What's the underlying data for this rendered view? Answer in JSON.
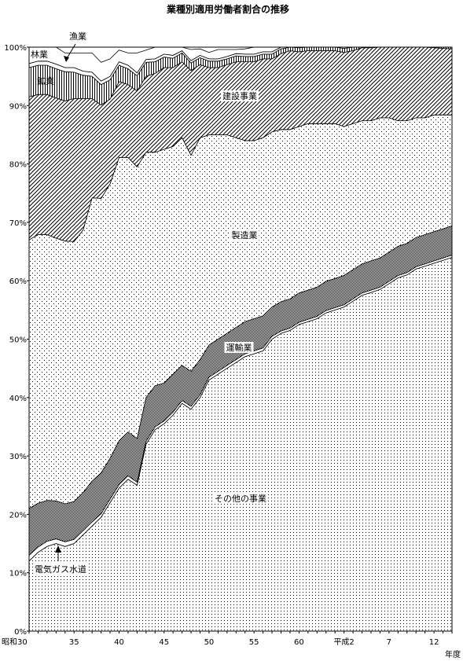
{
  "chart_data": {
    "type": "area",
    "stacked": true,
    "percent": true,
    "title": "業種別適用労働者割合の推移",
    "xlabel": "年度",
    "ylabel": "",
    "ylim": [
      0,
      100
    ],
    "x_tick_labels": [
      "昭和30",
      "35",
      "40",
      "45",
      "50",
      "55",
      "60",
      "平成2",
      "7",
      "12"
    ],
    "y_tick_labels": [
      "0%",
      "10%",
      "20%",
      "30%",
      "40%",
      "50%",
      "60%",
      "70%",
      "80%",
      "90%",
      "100%"
    ],
    "categories": [
      "昭和30",
      "31",
      "32",
      "33",
      "34",
      "35",
      "36",
      "37",
      "38",
      "39",
      "40",
      "41",
      "42",
      "43",
      "44",
      "45",
      "46",
      "47",
      "48",
      "49",
      "50",
      "51",
      "52",
      "53",
      "54",
      "55",
      "56",
      "57",
      "58",
      "59",
      "60",
      "61",
      "62",
      "63",
      "平成元",
      "平成2",
      "3",
      "4",
      "5",
      "6",
      "7",
      "8",
      "9",
      "10",
      "11",
      "12",
      "13",
      "14"
    ],
    "series": [
      {
        "name": "その他の事業",
        "values": [
          12,
          13.5,
          14.5,
          15,
          14.5,
          15,
          16.5,
          18,
          19.5,
          22,
          24.5,
          26,
          25,
          32,
          34.5,
          35.5,
          37,
          39,
          38,
          40,
          43,
          44,
          45,
          46,
          47,
          47.5,
          48,
          50,
          51,
          51.5,
          52.5,
          53,
          53.5,
          54.5,
          55,
          55.5,
          56.5,
          57.5,
          58,
          58.5,
          59.5,
          60.5,
          61,
          62,
          62.5,
          63,
          63.5,
          64
        ]
      },
      {
        "name": "電気ガス水道",
        "values": [
          1,
          0.9,
          0.9,
          0.8,
          0.8,
          0.7,
          0.7,
          0.7,
          0.6,
          0.6,
          0.6,
          0.6,
          0.5,
          0.5,
          0.5,
          0.5,
          0.5,
          0.5,
          0.5,
          0.5,
          0.5,
          0.5,
          0.5,
          0.5,
          0.5,
          0.5,
          0.5,
          0.5,
          0.4,
          0.4,
          0.4,
          0.4,
          0.4,
          0.4,
          0.4,
          0.4,
          0.4,
          0.4,
          0.4,
          0.4,
          0.4,
          0.4,
          0.4,
          0.4,
          0.4,
          0.4,
          0.4,
          0.4
        ]
      },
      {
        "name": "運輸業",
        "values": [
          8,
          7.5,
          7,
          6.5,
          6.5,
          6.5,
          6.5,
          7,
          7,
          7,
          7.5,
          7.5,
          7.5,
          7.5,
          7,
          6.5,
          6.5,
          6,
          6,
          6,
          5.5,
          5.5,
          5.5,
          5.5,
          5.5,
          5.5,
          5.5,
          5,
          5,
          5,
          5,
          5,
          5,
          5,
          5,
          5,
          5,
          5,
          5,
          5,
          5,
          5,
          5,
          5,
          5,
          5,
          5,
          5
        ]
      },
      {
        "name": "製造業",
        "values": [
          46,
          46,
          45.5,
          45,
          45,
          44.5,
          45,
          48.5,
          47,
          47,
          48.5,
          47,
          46.5,
          42,
          40,
          40,
          39,
          39,
          37,
          38,
          36,
          35,
          34,
          32.5,
          31,
          30.5,
          30.5,
          30,
          29.5,
          29,
          28.5,
          28.5,
          28,
          27,
          26.5,
          25.5,
          25,
          24.5,
          24,
          24,
          23,
          21.5,
          21,
          20.5,
          20,
          20,
          19.5,
          19
        ]
      },
      {
        "name": "建設事業",
        "values": [
          24.5,
          24,
          24,
          24,
          24,
          24.5,
          22.5,
          17,
          16,
          14.5,
          13,
          12.5,
          13,
          13,
          13.5,
          14,
          13.5,
          13,
          14.5,
          12.5,
          11.5,
          11.5,
          12,
          13,
          13.5,
          13.5,
          13.5,
          12.5,
          13,
          13.5,
          12.8,
          12.5,
          12.5,
          12.5,
          12.5,
          12.7,
          12.5,
          12.5,
          12.5,
          12.5,
          12.5,
          12.7,
          12.7,
          12.3,
          12.3,
          11.5,
          11.4,
          11.3
        ]
      },
      {
        "name": "鉱業",
        "values": [
          5,
          5,
          5,
          5,
          5,
          4.5,
          4,
          3.8,
          3.5,
          3.3,
          2.8,
          2.7,
          2.6,
          2.4,
          2,
          1.8,
          1.6,
          1.5,
          1.3,
          1.2,
          1.1,
          1.1,
          1,
          1,
          0.9,
          0.9,
          0.8,
          0.8,
          0.8,
          0.8,
          0.7,
          0.7,
          0.7,
          0.7,
          0.7,
          0.7,
          0.6,
          0.6,
          0.6,
          0.6,
          0.6,
          0.5,
          0.5,
          0.5,
          0.5,
          0.5,
          0.5,
          0.5
        ]
      },
      {
        "name": "漁業",
        "values": [
          0.7,
          0.7,
          0.7,
          0.8,
          0.7,
          0.8,
          0.7,
          0.7,
          0.6,
          0.6,
          0.6,
          0.6,
          0.5,
          0.5,
          0.5,
          0.5,
          0.5,
          0.4,
          0.4,
          0.4,
          0.4,
          0.4,
          0.4,
          0.4,
          0.4,
          0.4,
          0.4,
          0.4,
          0.3,
          0.3,
          0.3,
          0.3,
          0.3,
          0.3,
          0.3,
          0.3,
          0.3,
          0.3,
          0.3,
          0.3,
          0.3,
          0.3,
          0.3,
          0.3,
          0.3,
          0.3,
          0.3,
          0.3
        ]
      },
      {
        "name": "林業",
        "values": [
          2.8,
          2.4,
          2.4,
          2.9,
          2.5,
          2.5,
          3.1,
          3.3,
          3.2,
          3,
          2,
          2.1,
          3.4,
          1.6,
          2,
          1.2,
          1.5,
          1.2,
          1.9,
          1.1,
          1.1,
          1.6,
          1.2,
          0.7,
          0.9,
          1.3,
          0.9,
          0.9,
          0.9,
          0.9,
          0.9,
          1,
          1,
          1.1,
          0.7,
          1,
          0.8,
          0.8,
          0.8,
          1,
          0.8,
          1,
          1,
          1,
          1,
          1,
          1,
          1
        ]
      }
    ],
    "annotations": [
      {
        "text": "林業"
      },
      {
        "text": "漁業"
      },
      {
        "text": "鉱業"
      },
      {
        "text": "建設事業"
      },
      {
        "text": "製造業"
      },
      {
        "text": "運輸業"
      },
      {
        "text": "その他の事業"
      },
      {
        "text": "電気ガス水道"
      }
    ],
    "colors": {
      "line": "#000000",
      "background": "#ffffff"
    },
    "grid": false
  }
}
